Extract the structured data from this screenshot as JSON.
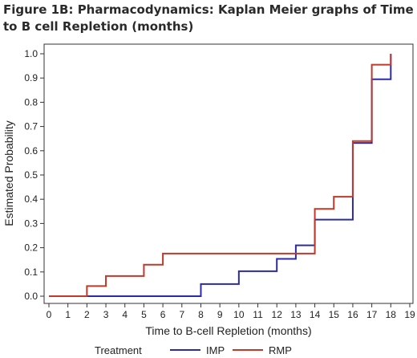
{
  "chart_data": {
    "type": "line",
    "step": true,
    "title_lines": [
      "Figure 1B: Pharmacodynamics: Kaplan Meier graphs of Time",
      "to B cell Repletion (months)"
    ],
    "xlabel": "Time to B-cell Repletion (months)",
    "ylabel": "Estimated Probability",
    "xlim": [
      0,
      19
    ],
    "ylim": [
      0,
      1.0
    ],
    "xticks": [
      "0",
      "1",
      "2",
      "3",
      "4",
      "5",
      "6",
      "7",
      "8",
      "9",
      "10",
      "11",
      "12",
      "13",
      "14",
      "15",
      "16",
      "17",
      "18",
      "19"
    ],
    "yticks": [
      "0.0",
      "0.1",
      "0.2",
      "0.3",
      "0.4",
      "0.5",
      "0.6",
      "0.7",
      "0.8",
      "0.9",
      "1.0"
    ],
    "grid": false,
    "legend": {
      "title": "Treatment",
      "placement": "bottom"
    },
    "series": [
      {
        "name": "IMP",
        "color": "#2b2ba8",
        "x": [
          0,
          8,
          10,
          12,
          13,
          14,
          16,
          17,
          18
        ],
        "y": [
          0.0,
          0.05,
          0.103,
          0.154,
          0.21,
          0.316,
          0.632,
          0.895,
          1.0
        ]
      },
      {
        "name": "RMP",
        "color": "#c0392b",
        "x": [
          0,
          2,
          3,
          5,
          6,
          14,
          15,
          16,
          17,
          18
        ],
        "y": [
          0.0,
          0.042,
          0.083,
          0.13,
          0.176,
          0.36,
          0.41,
          0.64,
          0.955,
          1.0
        ]
      }
    ]
  }
}
